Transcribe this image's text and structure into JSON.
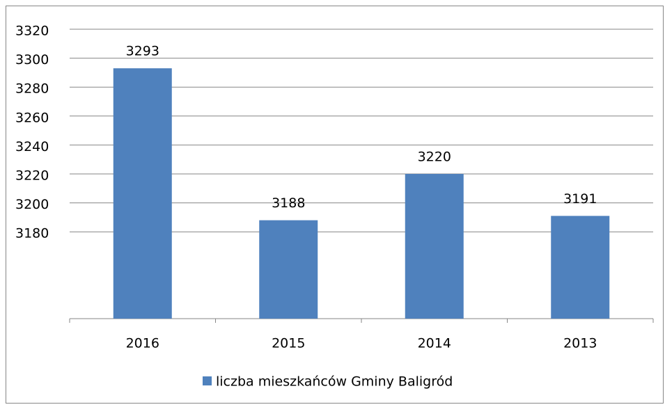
{
  "chart_data": {
    "type": "bar",
    "categories": [
      "2016",
      "2015",
      "2014",
      "2013"
    ],
    "series": [
      {
        "name": "liczba mieszkańców Gminy Baligród",
        "color": "#4f81bd",
        "values": [
          3293,
          3188,
          3220,
          3191
        ]
      }
    ],
    "ylim": [
      3120,
      3320
    ],
    "yticks": [
      3180,
      3200,
      3220,
      3240,
      3260,
      3280,
      3300,
      3320
    ],
    "grid": true,
    "legend": "bottom"
  }
}
